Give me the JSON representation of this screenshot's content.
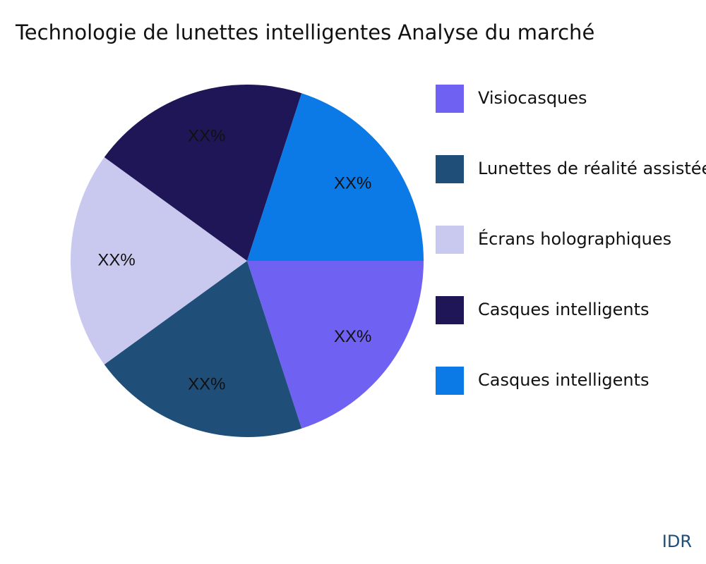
{
  "chart_data": {
    "type": "pie",
    "title": "Technologie de lunettes intelligentes Analyse du marché",
    "categories": [
      "Visiocasques",
      "Lunettes de réalité assistée",
      "Écrans holographiques",
      "Casques intelligents",
      "Casques intelligents"
    ],
    "values": [
      20,
      20,
      20,
      20,
      20
    ],
    "value_labels": [
      "XX%",
      "XX%",
      "XX%",
      "XX%",
      "XX%"
    ],
    "colors": [
      "#6f62f2",
      "#1f4e79",
      "#c9c9f0",
      "#1e1656",
      "#0b79e6"
    ],
    "legend": "right",
    "source": "IDR"
  }
}
